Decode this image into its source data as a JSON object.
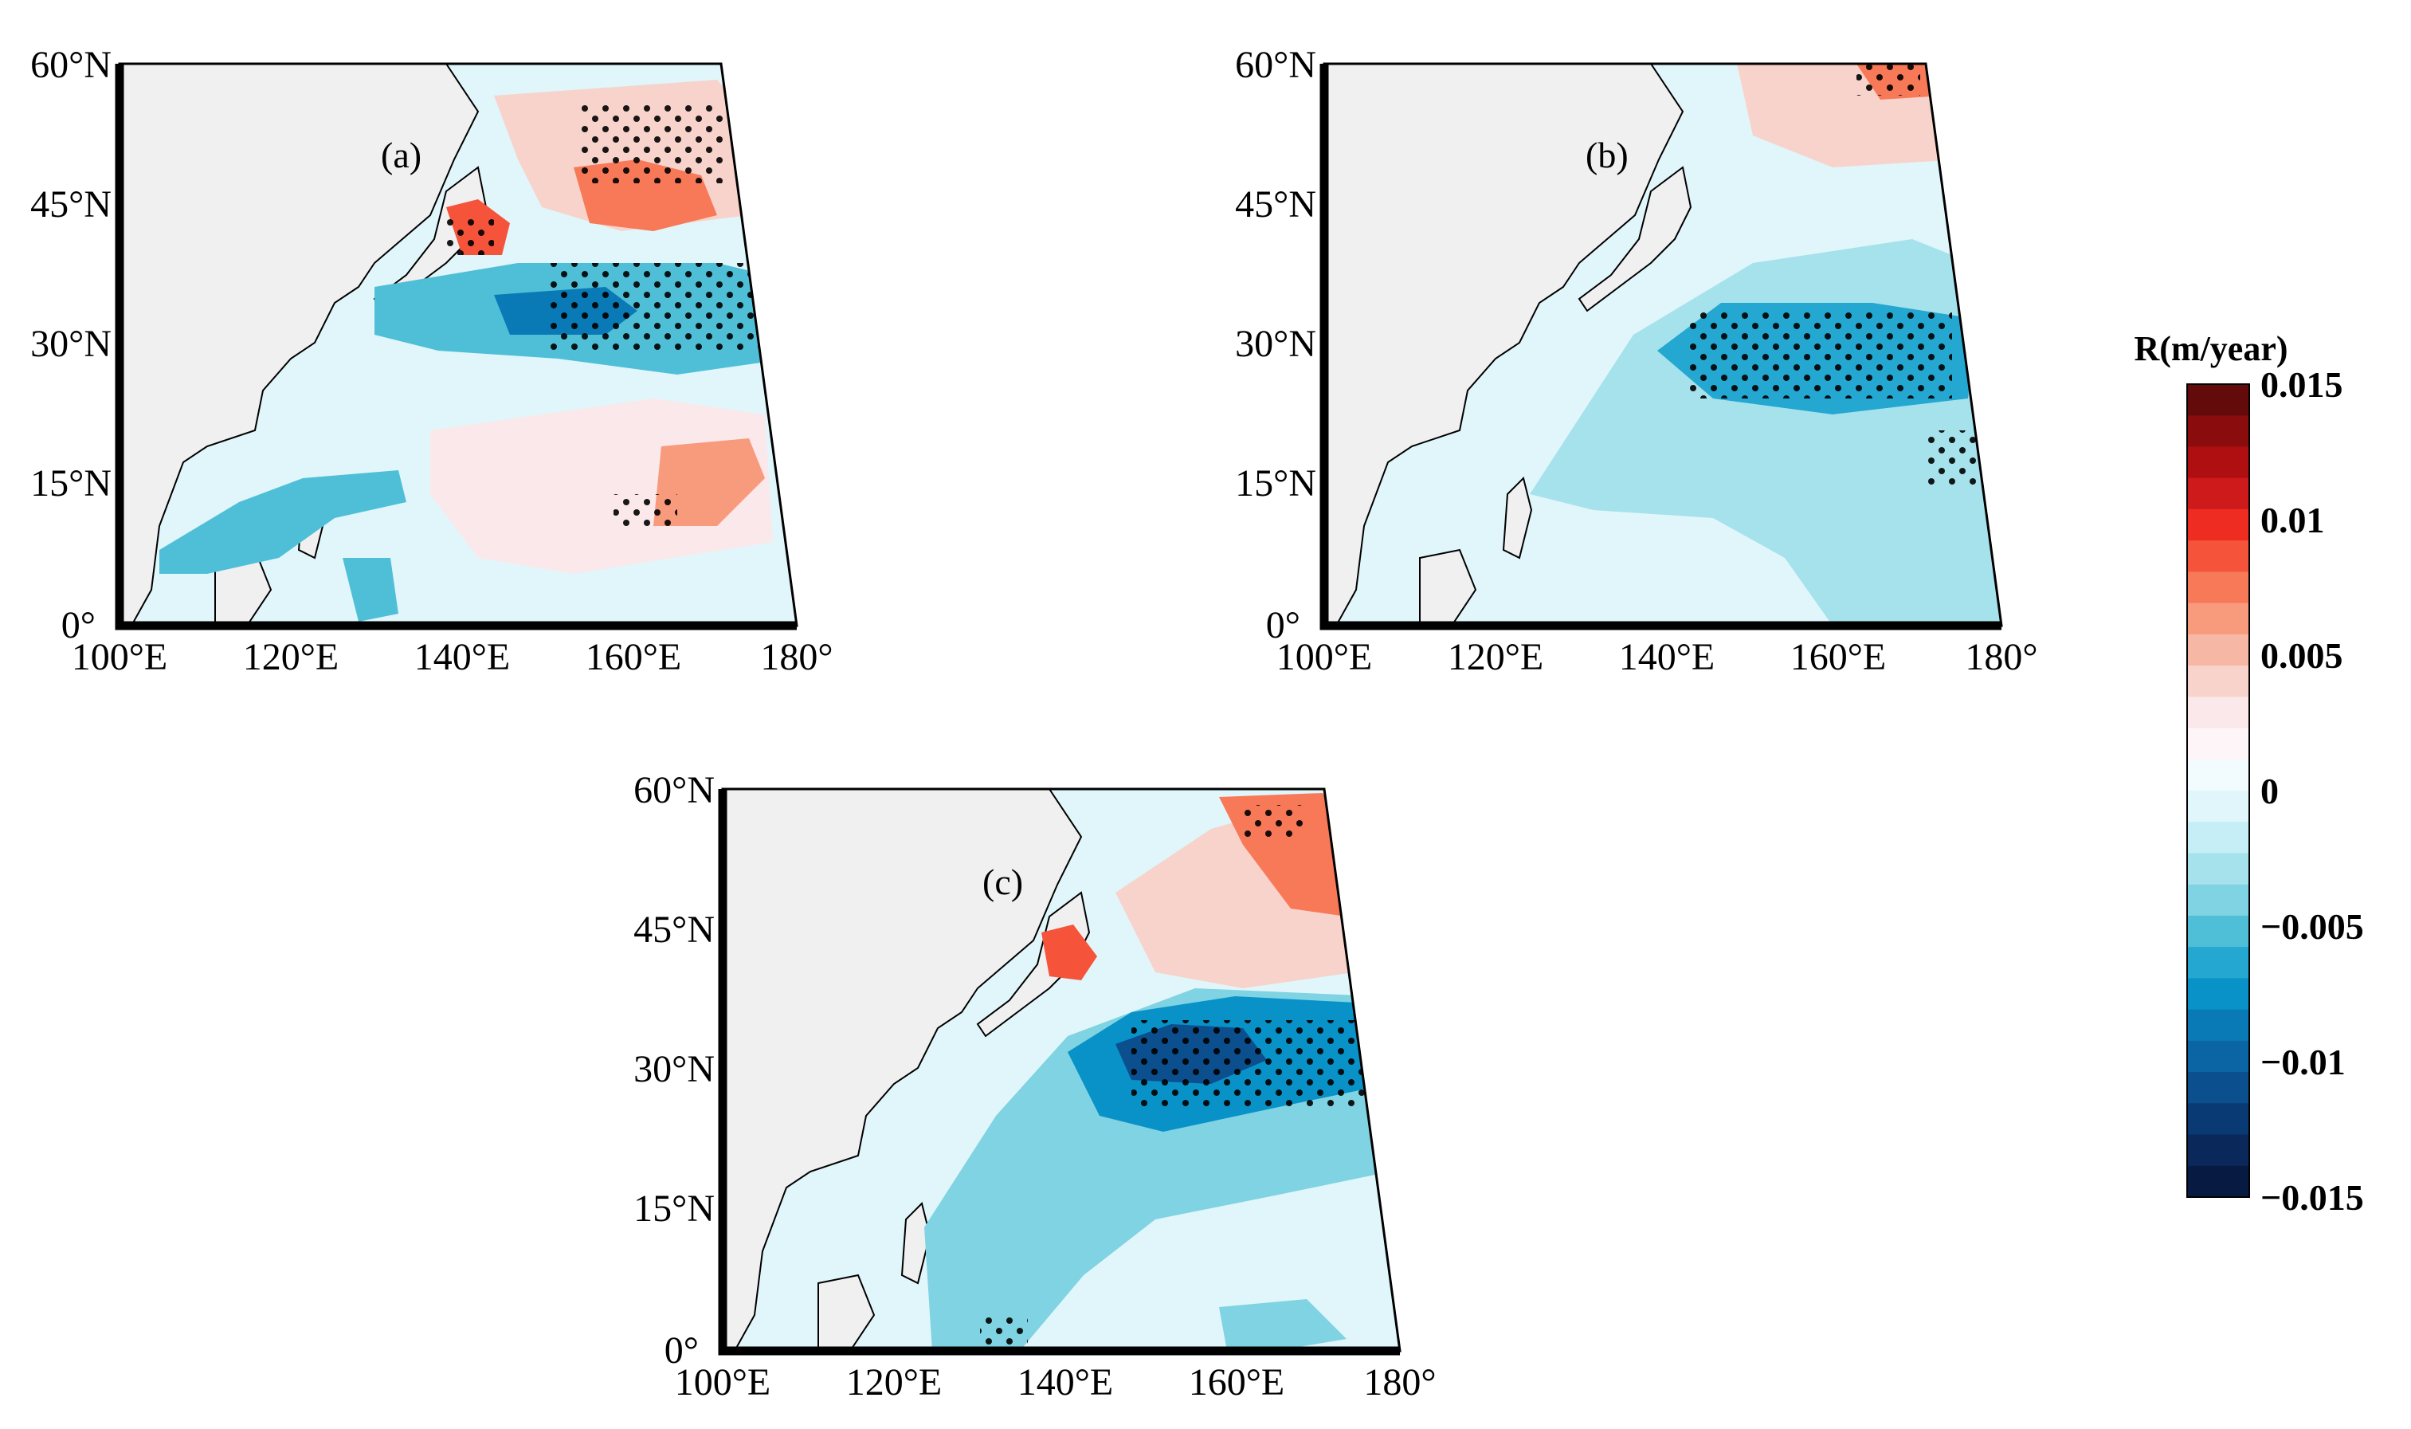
{
  "panels": [
    {
      "label": "(a)"
    },
    {
      "label": "(b)"
    },
    {
      "label": "(c)"
    }
  ],
  "axes": {
    "lat_labels": [
      "60°N",
      "45°N",
      "30°N",
      "15°N",
      "0°"
    ],
    "lon_labels": [
      "100°E",
      "120°E",
      "140°E",
      "160°E",
      "180°"
    ]
  },
  "colorbar": {
    "title": "R(m/year)",
    "ticks": [
      "0.015",
      "0.01",
      "0.005",
      "0",
      "−0.005",
      "−0.01",
      "−0.015"
    ],
    "colors": [
      "#630a0a",
      "#8a0c0c",
      "#b00f12",
      "#cf1a1c",
      "#ee2c22",
      "#f5533a",
      "#f77958",
      "#f89a7c",
      "#f7b7a5",
      "#f8d3cb",
      "#fbe8ea",
      "#fdf5f7",
      "#f2fbfd",
      "#e0f6fb",
      "#c6eef6",
      "#a6e2ec",
      "#7fd3e2",
      "#4fbfd8",
      "#24a8d2",
      "#0892c8",
      "#0a7ab7",
      "#0b64a4",
      "#0b4f8e",
      "#0a3a73",
      "#0a285a",
      "#071a42"
    ]
  }
}
